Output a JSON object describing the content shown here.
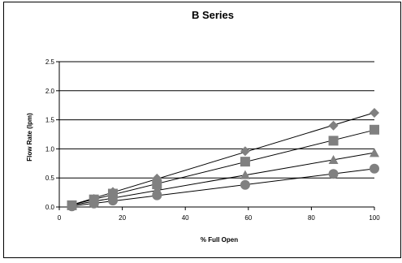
{
  "chart_data": {
    "type": "scatter",
    "title": "B Series",
    "xlabel": "% Full Open",
    "ylabel": "Flow Rate (lpm)",
    "xlim": [
      0,
      100
    ],
    "ylim": [
      0,
      2.5
    ],
    "x_ticks": [
      "0",
      "20",
      "40",
      "60",
      "80",
      "100"
    ],
    "y_ticks": [
      "0.0",
      "0.5",
      "1.0",
      "1.5",
      "2.0",
      "2.5"
    ],
    "grid": "horizontal",
    "legend": "none",
    "marker_color": "#808080",
    "trendlines": "linear",
    "series": [
      {
        "marker": "diamond",
        "points": [
          [
            4,
            0.03
          ],
          [
            11,
            0.14
          ],
          [
            17,
            0.26
          ],
          [
            31,
            0.49
          ],
          [
            59,
            0.96
          ],
          [
            87,
            1.4
          ],
          [
            100,
            1.62
          ]
        ]
      },
      {
        "marker": "square",
        "points": [
          [
            4,
            0.03
          ],
          [
            11,
            0.13
          ],
          [
            17,
            0.23
          ],
          [
            31,
            0.39
          ],
          [
            59,
            0.78
          ],
          [
            87,
            1.14
          ],
          [
            100,
            1.33
          ]
        ]
      },
      {
        "marker": "triangle",
        "points": [
          [
            4,
            0.02
          ],
          [
            11,
            0.09
          ],
          [
            17,
            0.16
          ],
          [
            31,
            0.3
          ],
          [
            59,
            0.55
          ],
          [
            87,
            0.81
          ],
          [
            100,
            0.93
          ]
        ]
      },
      {
        "marker": "circle",
        "points": [
          [
            4,
            0.01
          ],
          [
            11,
            0.06
          ],
          [
            17,
            0.11
          ],
          [
            31,
            0.2
          ],
          [
            59,
            0.38
          ],
          [
            87,
            0.57
          ],
          [
            100,
            0.66
          ]
        ]
      }
    ]
  }
}
